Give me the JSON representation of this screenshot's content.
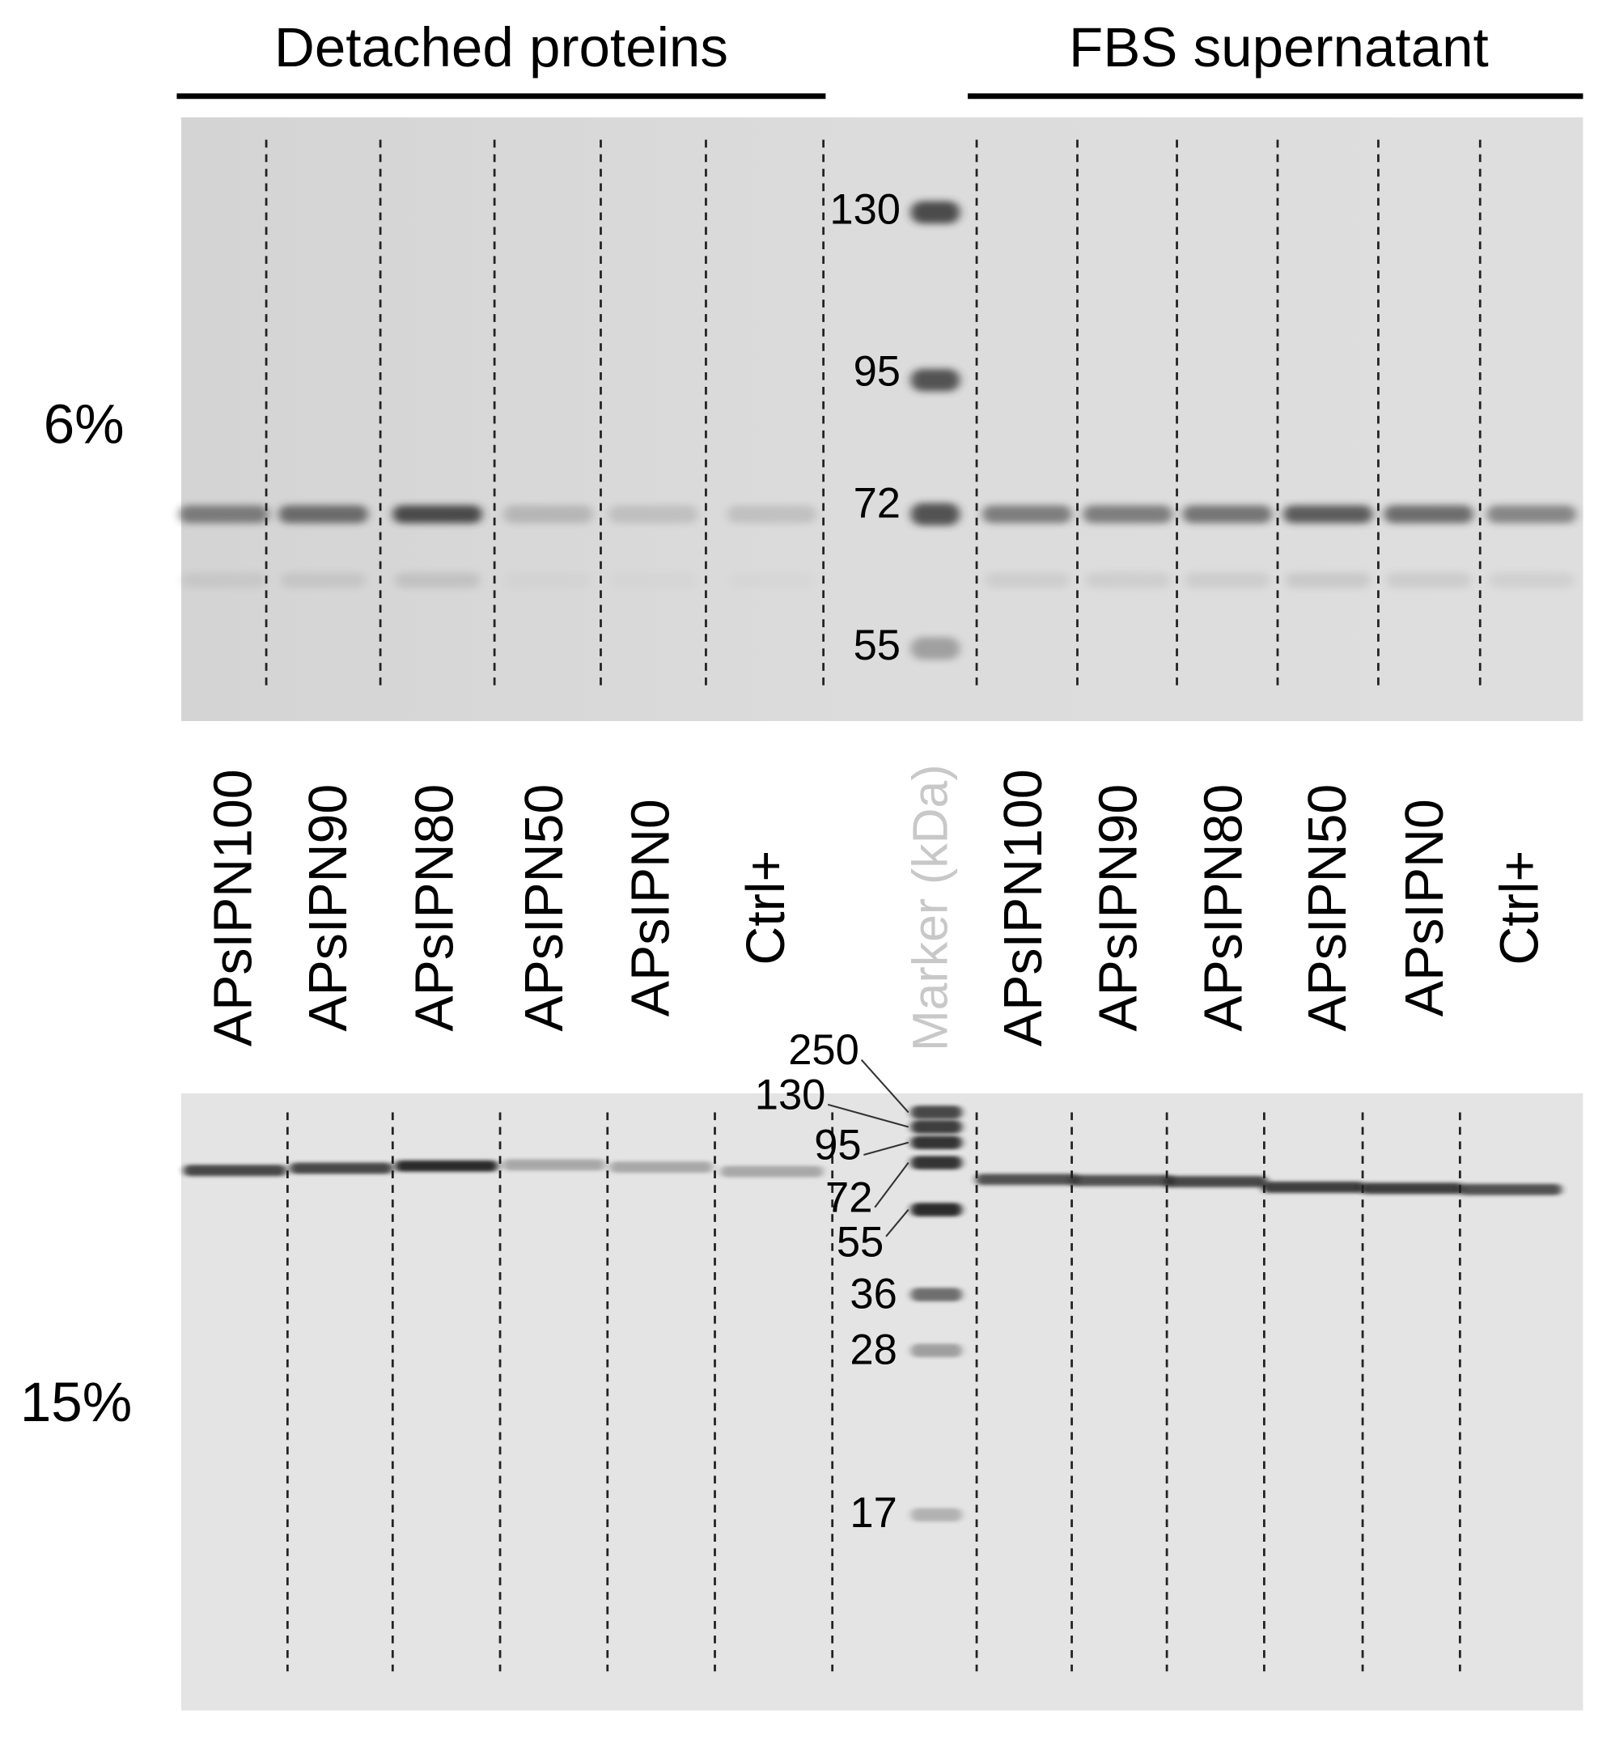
{
  "header": {
    "left_group": "Detached proteins",
    "right_group": "FBS supernatant"
  },
  "gels": [
    {
      "label": "6%",
      "markers": [
        "130",
        "95",
        "72",
        "55"
      ]
    },
    {
      "label": "15%",
      "markers": [
        "250",
        "130",
        "95",
        "72",
        "55",
        "36",
        "28",
        "17"
      ]
    }
  ],
  "lanes": {
    "left": [
      "APsIPN100",
      "APsIPN90",
      "APsIPN80",
      "APsIPN50",
      "APsIPN0",
      "Ctrl+"
    ],
    "marker": "Marker (kDa)",
    "right": [
      "APsIPN100",
      "APsIPN90",
      "APsIPN80",
      "APsIPN50",
      "APsIPN0",
      "Ctrl+"
    ]
  }
}
